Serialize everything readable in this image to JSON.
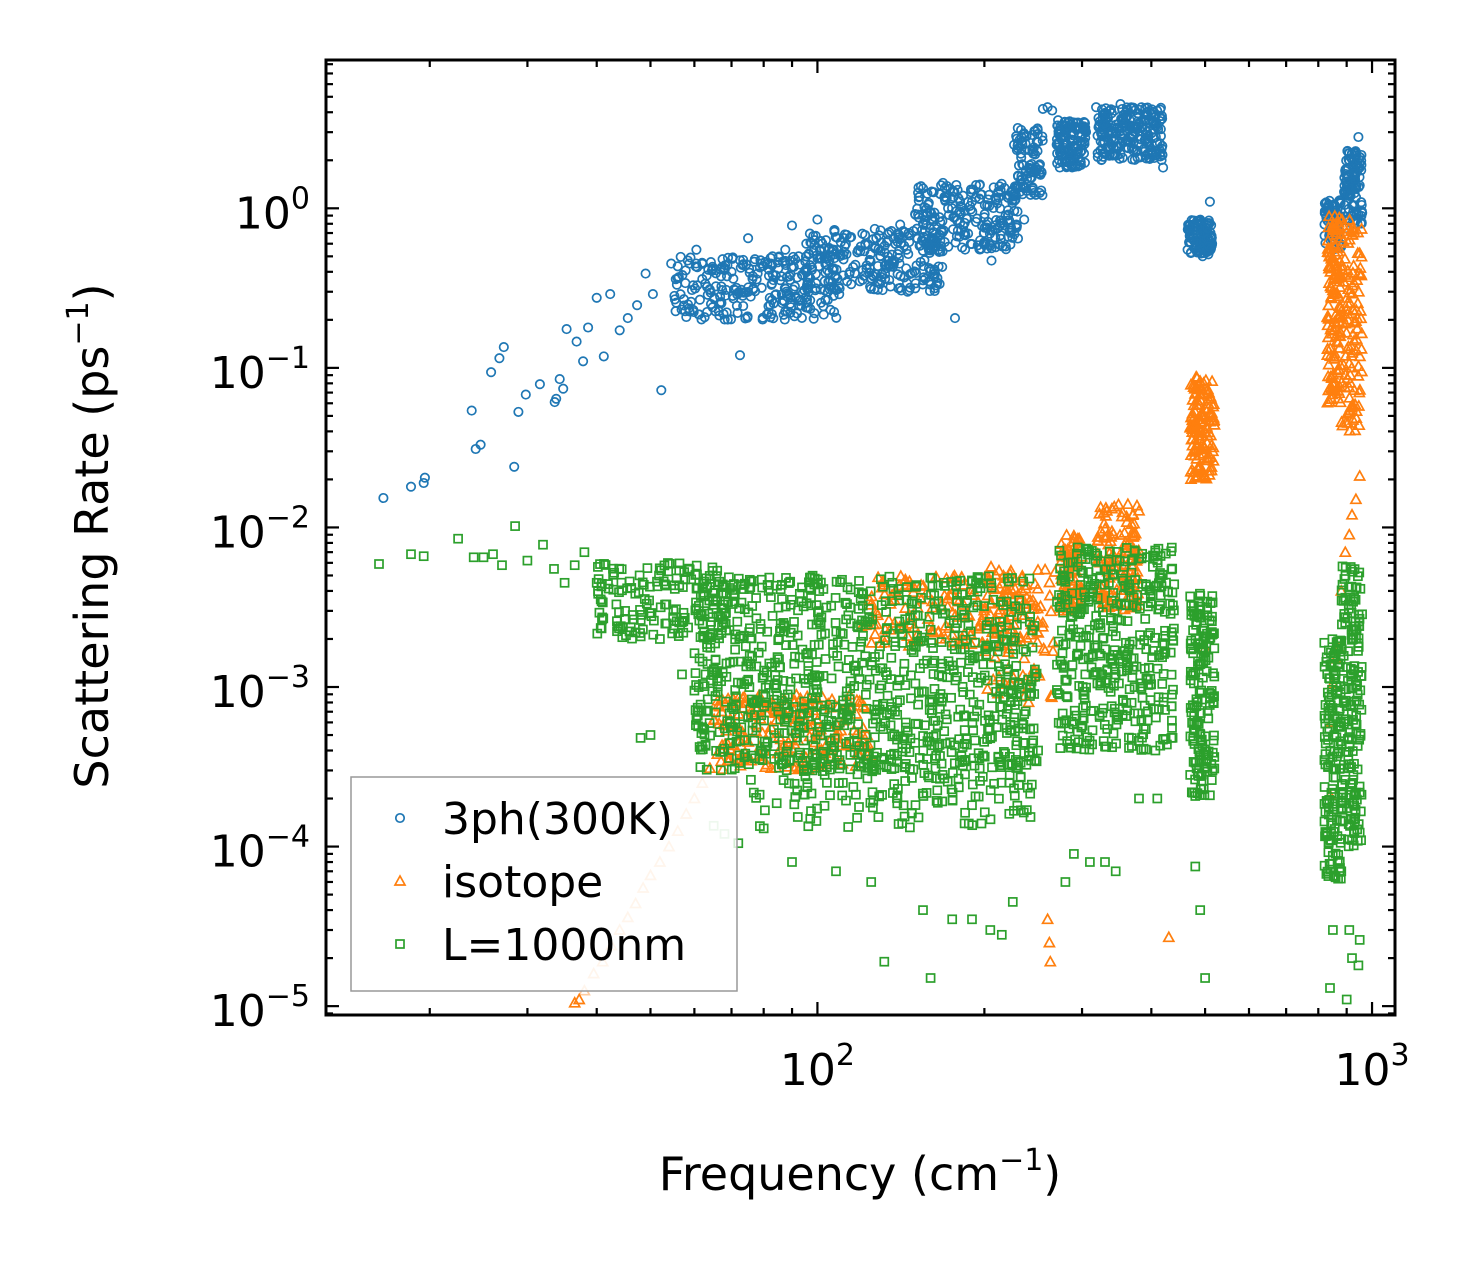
{
  "chart_data": {
    "type": "scatter",
    "title": "",
    "xlabel": {
      "base": "Frequency (cm",
      "sup": "−1",
      "tail": ")"
    },
    "ylabel": {
      "base": "Scattering Rate (ps",
      "sup": "−1",
      "tail": ")"
    },
    "xscale": "log",
    "yscale": "log",
    "xlim": [
      13,
      1100
    ],
    "ylim": [
      8.8e-06,
      8.5
    ],
    "x_ticks": [
      {
        "value": 100,
        "base": "10",
        "exp": "2"
      },
      {
        "value": 1000,
        "base": "10",
        "exp": "3"
      }
    ],
    "y_ticks": [
      {
        "value": 1,
        "base": "10",
        "exp": "0"
      },
      {
        "value": 0.1,
        "base": "10",
        "exp": "−1"
      },
      {
        "value": 0.01,
        "base": "10",
        "exp": "−2"
      },
      {
        "value": 0.001,
        "base": "10",
        "exp": "−3"
      },
      {
        "value": 0.0001,
        "base": "10",
        "exp": "−4"
      },
      {
        "value": 1e-05,
        "base": "10",
        "exp": "−5"
      }
    ],
    "grid": false,
    "legend_position": "bottom-left",
    "series": [
      {
        "name": "3ph(300K)",
        "marker": "circle",
        "color": "#1f77b4",
        "points": [
          [
            16.5,
            0.0153
          ],
          [
            18.5,
            0.018
          ],
          [
            19.5,
            0.019
          ],
          [
            19.6,
            0.0205
          ],
          [
            23.8,
            0.054
          ],
          [
            24.2,
            0.031
          ],
          [
            24.7,
            0.033
          ],
          [
            25.8,
            0.094
          ],
          [
            26.7,
            0.115
          ],
          [
            27.2,
            0.135
          ],
          [
            28.4,
            0.024
          ],
          [
            28.9,
            0.053
          ],
          [
            29.8,
            0.068
          ],
          [
            31.6,
            0.079
          ],
          [
            33.6,
            0.061
          ],
          [
            33.8,
            0.064
          ],
          [
            34.3,
            0.085
          ],
          [
            34.8,
            0.074
          ],
          [
            35.3,
            0.175
          ],
          [
            36.8,
            0.146
          ],
          [
            37.8,
            0.11
          ],
          [
            38.6,
            0.179
          ],
          [
            40,
            0.275
          ],
          [
            41.2,
            0.118
          ],
          [
            42.3,
            0.29
          ],
          [
            44,
            0.172
          ],
          [
            45.5,
            0.205
          ],
          [
            47.3,
            0.247
          ],
          [
            49,
            0.39
          ],
          [
            50.5,
            0.29
          ],
          [
            52.3,
            0.0725
          ],
          [
            54.5,
            0.45
          ],
          [
            57.8,
            0.34
          ],
          [
            60.5,
            0.55
          ],
          [
            62,
            0.36
          ],
          [
            64.7,
            0.43
          ],
          [
            67,
            0.375
          ],
          [
            70,
            0.4
          ],
          [
            72.5,
            0.12
          ],
          [
            75,
            0.65
          ],
          [
            78,
            0.39
          ],
          [
            80.5,
            0.46
          ],
          [
            83,
            0.5
          ],
          [
            85,
            0.42
          ],
          [
            87.5,
            0.55
          ],
          [
            90,
            0.78
          ],
          [
            92.5,
            0.5
          ],
          [
            95.5,
            0.6
          ],
          [
            97,
            0.44
          ],
          [
            100,
            0.85
          ],
          [
            103,
            0.49
          ],
          [
            107,
            0.55
          ],
          [
            112,
            0.58
          ],
          [
            115,
            0.66
          ],
          [
            118,
            0.53
          ],
          [
            122,
            0.6
          ],
          [
            126,
            0.64
          ],
          [
            130,
            0.5
          ],
          [
            136,
            0.72
          ],
          [
            141,
            0.79
          ],
          [
            146,
            0.7
          ],
          [
            150,
            0.92
          ],
          [
            155,
            0.8
          ],
          [
            160,
            0.93
          ],
          [
            166,
            0.88
          ],
          [
            172,
            1.0
          ],
          [
            177,
            0.205
          ],
          [
            178,
            1.4
          ],
          [
            183,
            1.2
          ],
          [
            190,
            1.1
          ],
          [
            196,
            1.15
          ],
          [
            206,
            0.47
          ],
          [
            212,
            1.25
          ],
          [
            225,
            1.3
          ],
          [
            230,
            1.6
          ],
          [
            236,
            0.85
          ],
          [
            245,
            2.2
          ],
          [
            250,
            2.6
          ],
          [
            255,
            4.2
          ],
          [
            260,
            4.3
          ],
          [
            265,
            4.1
          ],
          [
            270,
            2.5
          ],
          [
            280,
            2.3
          ],
          [
            285,
            2.0
          ],
          [
            300,
            2.6
          ],
          [
            305,
            3.0
          ],
          [
            318,
            4.3
          ],
          [
            330,
            2.8
          ],
          [
            345,
            3.0
          ],
          [
            352,
            4.5
          ],
          [
            360,
            4.0
          ],
          [
            370,
            3.2
          ],
          [
            380,
            2.5
          ],
          [
            400,
            2.2
          ],
          [
            420,
            1.8
          ],
          [
            465,
            0.55
          ],
          [
            475,
            0.68
          ],
          [
            483,
            0.6
          ],
          [
            495,
            0.7
          ],
          [
            505,
            0.75
          ],
          [
            510,
            1.1
          ],
          [
            830,
            1.0
          ],
          [
            850,
            0.62
          ],
          [
            870,
            0.9
          ],
          [
            895,
            0.75
          ],
          [
            920,
            2.2
          ],
          [
            945,
            2.8
          ]
        ],
        "clusters": [
          {
            "x": [
              55,
              110
            ],
            "y": [
              0.2,
              0.5
            ],
            "n": 260
          },
          {
            "x": [
              95,
              170
            ],
            "y": [
              0.3,
              0.75
            ],
            "n": 240
          },
          {
            "x": [
              150,
              230
            ],
            "y": [
              0.55,
              1.45
            ],
            "n": 220
          },
          {
            "x": [
              225,
              255
            ],
            "y": [
              1.2,
              3.2
            ],
            "n": 90
          },
          {
            "x": [
              270,
              305
            ],
            "y": [
              1.8,
              3.6
            ],
            "n": 130
          },
          {
            "x": [
              320,
              420
            ],
            "y": [
              2.0,
              4.3
            ],
            "n": 230
          },
          {
            "x": [
              465,
              515
            ],
            "y": [
              0.5,
              0.85
            ],
            "n": 110
          },
          {
            "x": [
              820,
              880
            ],
            "y": [
              0.55,
              1.15
            ],
            "n": 70
          },
          {
            "x": [
              890,
              960
            ],
            "y": [
              0.8,
              2.3
            ],
            "n": 110
          }
        ]
      },
      {
        "name": "isotope",
        "marker": "triangle",
        "color": "#ff7f0e",
        "points": [
          [
            36.5,
            1.05e-05
          ],
          [
            37.2,
            1.1e-05
          ],
          [
            38,
            1.25e-05
          ],
          [
            39.5,
            1.6e-05
          ],
          [
            41,
            1.9e-05
          ],
          [
            42.5,
            2.4e-05
          ],
          [
            44,
            3e-05
          ],
          [
            45.5,
            3.6e-05
          ],
          [
            47,
            4.4e-05
          ],
          [
            48.5,
            5.5e-05
          ],
          [
            50,
            6.6e-05
          ],
          [
            52,
            8e-05
          ],
          [
            54,
            0.0001
          ],
          [
            56,
            0.000125
          ],
          [
            58,
            0.00016
          ],
          [
            60,
            0.0002
          ],
          [
            62,
            0.00025
          ],
          [
            64,
            0.00031
          ],
          [
            66,
            0.00038
          ],
          [
            260,
            3.5e-05
          ],
          [
            262,
            2.5e-05
          ],
          [
            263,
            1.9e-05
          ],
          [
            430,
            2.7e-05
          ],
          [
            500,
            0.00175
          ],
          [
            840,
            0.00021
          ],
          [
            845,
            0.0006
          ],
          [
            850,
            0.00105
          ],
          [
            860,
            0.0015
          ],
          [
            870,
            0.00175
          ],
          [
            880,
            0.004
          ],
          [
            895,
            0.007
          ],
          [
            910,
            0.009
          ],
          [
            920,
            0.012
          ],
          [
            935,
            0.015
          ],
          [
            950,
            0.021
          ]
        ],
        "clusters": [
          {
            "x": [
              65,
              125
            ],
            "y": [
              0.0003,
              0.0009
            ],
            "n": 200
          },
          {
            "x": [
              120,
              250
            ],
            "y": [
              0.0018,
              0.005
            ],
            "n": 170
          },
          {
            "x": [
              200,
              270
            ],
            "y": [
              0.0008,
              0.006
            ],
            "n": 80
          },
          {
            "x": [
              275,
              300
            ],
            "y": [
              0.003,
              0.009
            ],
            "n": 90
          },
          {
            "x": [
              320,
              380
            ],
            "y": [
              0.003,
              0.014
            ],
            "n": 130
          },
          {
            "x": [
              470,
              520
            ],
            "y": [
              0.02,
              0.09
            ],
            "n": 130
          },
          {
            "x": [
              830,
              880
            ],
            "y": [
              0.06,
              0.9
            ],
            "n": 130
          },
          {
            "x": [
              880,
              960
            ],
            "y": [
              0.04,
              0.85
            ],
            "n": 110
          }
        ]
      },
      {
        "name": "L=1000nm",
        "marker": "square",
        "color": "#2ca02c",
        "points": [
          [
            16.2,
            0.0059
          ],
          [
            18.5,
            0.0068
          ],
          [
            19.5,
            0.0066
          ],
          [
            22.5,
            0.0085
          ],
          [
            24,
            0.0065
          ],
          [
            25,
            0.0065
          ],
          [
            26,
            0.0068
          ],
          [
            27,
            0.0058
          ],
          [
            28.5,
            0.0102
          ],
          [
            30,
            0.0062
          ],
          [
            32,
            0.0078
          ],
          [
            33.5,
            0.0055
          ],
          [
            35,
            0.0045
          ],
          [
            36.5,
            0.0058
          ],
          [
            38,
            0.007
          ],
          [
            40,
            0.0045
          ],
          [
            43,
            0.0052
          ],
          [
            45,
            0.003
          ],
          [
            47,
            0.0022
          ],
          [
            48,
            0.00048
          ],
          [
            50,
            0.0005
          ],
          [
            52,
            0.002
          ],
          [
            55,
            0.003
          ],
          [
            57,
            0.0012
          ],
          [
            60,
            0.00095
          ],
          [
            61,
            0.0007
          ],
          [
            62,
            0.00056
          ],
          [
            65,
            0.000135
          ],
          [
            68,
            0.00012
          ],
          [
            72,
            0.000105
          ],
          [
            80,
            0.00013
          ],
          [
            90,
            8e-05
          ],
          [
            108,
            7e-05
          ],
          [
            125,
            6e-05
          ],
          [
            132,
            1.9e-05
          ],
          [
            155,
            4e-05
          ],
          [
            160,
            1.5e-05
          ],
          [
            175,
            3.5e-05
          ],
          [
            190,
            3.5e-05
          ],
          [
            205,
            3e-05
          ],
          [
            215,
            2.8e-05
          ],
          [
            225,
            4.5e-05
          ],
          [
            250,
            0.0004
          ],
          [
            280,
            6e-05
          ],
          [
            290,
            9e-05
          ],
          [
            310,
            8e-05
          ],
          [
            330,
            8e-05
          ],
          [
            345,
            7e-05
          ],
          [
            380,
            0.0002
          ],
          [
            410,
            0.0002
          ],
          [
            480,
            7.5e-05
          ],
          [
            490,
            4e-05
          ],
          [
            500,
            1.5e-05
          ],
          [
            840,
            1.3e-05
          ],
          [
            850,
            3e-05
          ],
          [
            880,
            7e-05
          ],
          [
            900,
            1.1e-05
          ],
          [
            910,
            3e-05
          ],
          [
            920,
            2e-05
          ],
          [
            945,
            1.8e-05
          ],
          [
            950,
            2.6e-05
          ]
        ],
        "clusters": [
          {
            "x": [
              40,
              70
            ],
            "y": [
              0.002,
              0.006
            ],
            "n": 160
          },
          {
            "x": [
              60,
              250
            ],
            "y": [
              0.0003,
              0.005
            ],
            "n": 950
          },
          {
            "x": [
              75,
              245
            ],
            "y": [
              0.00013,
              0.0004
            ],
            "n": 170
          },
          {
            "x": [
              270,
              440
            ],
            "y": [
              0.0004,
              0.0075
            ],
            "n": 420
          },
          {
            "x": [
              470,
              520
            ],
            "y": [
              0.0002,
              0.004
            ],
            "n": 170
          },
          {
            "x": [
              820,
              880
            ],
            "y": [
              6e-05,
              0.002
            ],
            "n": 150
          },
          {
            "x": [
              880,
              960
            ],
            "y": [
              0.0001,
              0.006
            ],
            "n": 170
          }
        ]
      }
    ]
  }
}
